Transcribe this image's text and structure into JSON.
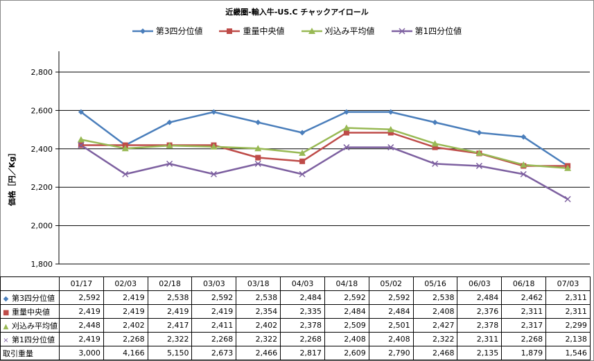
{
  "chart_data": {
    "type": "line",
    "title": "近畿圏-輸入牛-US.C チャックアイロール",
    "ylabel": "価格［円／Kg］",
    "ylim": [
      1800,
      2800
    ],
    "yticks": [
      1800,
      2000,
      2200,
      2400,
      2600,
      2800
    ],
    "ytick_labels": [
      "1,800",
      "2,000",
      "2,200",
      "2,400",
      "2,600",
      "2,800"
    ],
    "grid": "horizontal",
    "legend_position": "top",
    "categories": [
      "01/17",
      "02/03",
      "02/18",
      "03/03",
      "03/18",
      "04/03",
      "04/18",
      "05/02",
      "05/16",
      "06/03",
      "06/18",
      "07/03"
    ],
    "series": [
      {
        "name": "第3四分位値",
        "color": "#4A7EBB",
        "marker": "diamond",
        "symbol": "◆",
        "values": [
          2592,
          2419,
          2538,
          2592,
          2538,
          2484,
          2592,
          2592,
          2538,
          2484,
          2462,
          2311
        ],
        "labels": [
          "2,592",
          "2,419",
          "2,538",
          "2,592",
          "2,538",
          "2,484",
          "2,592",
          "2,592",
          "2,538",
          "2,484",
          "2,462",
          "2,311"
        ]
      },
      {
        "name": "重量中央値",
        "color": "#BE4B48",
        "marker": "square",
        "symbol": "■",
        "values": [
          2419,
          2419,
          2419,
          2419,
          2354,
          2335,
          2484,
          2484,
          2408,
          2376,
          2311,
          2311
        ],
        "labels": [
          "2,419",
          "2,419",
          "2,419",
          "2,419",
          "2,354",
          "2,335",
          "2,484",
          "2,484",
          "2,408",
          "2,376",
          "2,311",
          "2,311"
        ]
      },
      {
        "name": "刈込み平均値",
        "color": "#98B954",
        "marker": "triangle",
        "symbol": "▲",
        "values": [
          2448,
          2402,
          2417,
          2411,
          2402,
          2378,
          2509,
          2501,
          2427,
          2378,
          2317,
          2299
        ],
        "labels": [
          "2,448",
          "2,402",
          "2,417",
          "2,411",
          "2,402",
          "2,378",
          "2,509",
          "2,501",
          "2,427",
          "2,378",
          "2,317",
          "2,299"
        ]
      },
      {
        "name": "第1四分位値",
        "color": "#7D60A0",
        "marker": "x",
        "symbol": "×",
        "values": [
          2419,
          2268,
          2322,
          2268,
          2322,
          2268,
          2408,
          2408,
          2322,
          2311,
          2268,
          2138
        ],
        "labels": [
          "2,419",
          "2,268",
          "2,322",
          "2,268",
          "2,322",
          "2,268",
          "2,408",
          "2,408",
          "2,322",
          "2,311",
          "2,268",
          "2,138"
        ]
      }
    ],
    "extra_rows": [
      {
        "name": "取引重量",
        "labels": [
          "3,000",
          "4,166",
          "5,150",
          "2,673",
          "2,466",
          "2,817",
          "2,609",
          "2,790",
          "2,468",
          "2,135",
          "1,879",
          "1,546"
        ]
      }
    ]
  }
}
